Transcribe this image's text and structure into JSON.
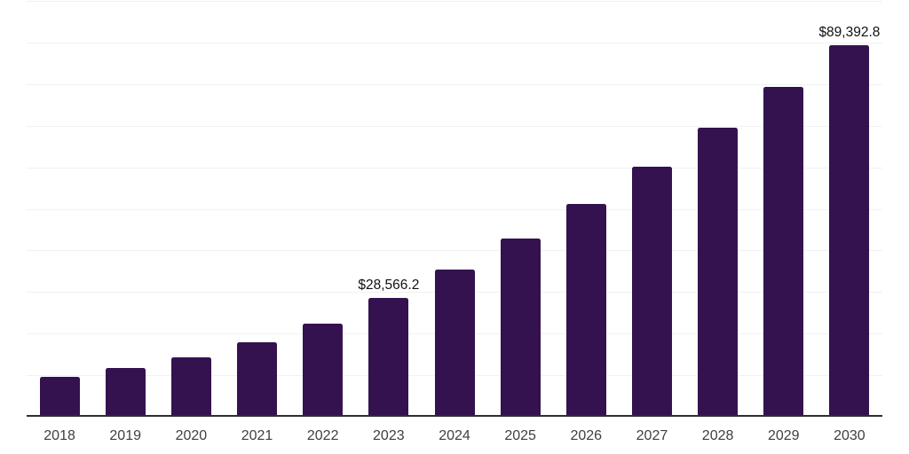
{
  "chart_data": {
    "type": "bar",
    "title": "",
    "xlabel": "",
    "ylabel": "",
    "categories": [
      "2018",
      "2019",
      "2020",
      "2021",
      "2022",
      "2023",
      "2024",
      "2025",
      "2026",
      "2027",
      "2028",
      "2029",
      "2030"
    ],
    "values": [
      9500,
      11700,
      14350,
      18000,
      22400,
      28566.2,
      35300,
      42900,
      51200,
      60100,
      69500,
      79250,
      89392.8
    ],
    "value_labels": [
      {
        "category": "2023",
        "text": "$28,566.2"
      },
      {
        "category": "2030",
        "text": "$89,392.8"
      }
    ],
    "ylim": [
      0,
      100000
    ],
    "gridline_interval": 10000,
    "grid": "horizontal-only",
    "y_axis_tick_labels": "none",
    "legend": "none",
    "colors": {
      "bar": "#34124f",
      "axis_line": "#2e2e2e",
      "gridline": "#f1f1f1",
      "value_label_text": "#111111",
      "x_tick_text": "#3f3f3f",
      "background": "#ffffff"
    }
  }
}
